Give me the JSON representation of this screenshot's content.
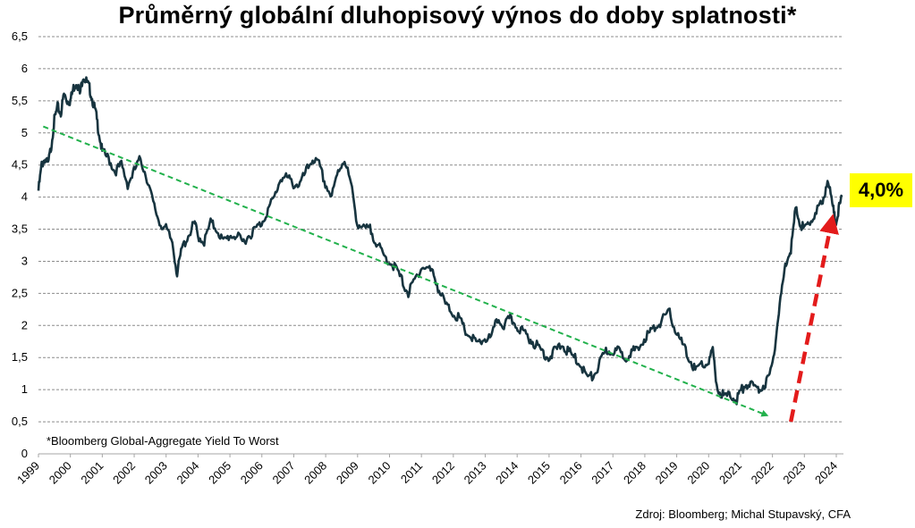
{
  "chart_data": {
    "type": "line",
    "title": "Průměrný globální dluhopisový výnos do doby splatnosti*",
    "footnote": "*Bloomberg Global-Aggregate Yield To Worst",
    "source": "Zdroj: Bloomberg; Michal Stupavský, CFA",
    "callout": "4,0%",
    "ylim": [
      0,
      6.5
    ],
    "yticks": [
      "0",
      "0,5",
      "1",
      "1,5",
      "2",
      "2,5",
      "3",
      "3,5",
      "4",
      "4,5",
      "5",
      "5,5",
      "6",
      "6,5"
    ],
    "xticks": [
      "1999",
      "2000",
      "2001",
      "2002",
      "2003",
      "2004",
      "2005",
      "2006",
      "2007",
      "2008",
      "2009",
      "2010",
      "2011",
      "2012",
      "2013",
      "2014",
      "2015",
      "2016",
      "2017",
      "2018",
      "2019",
      "2020",
      "2021",
      "2022",
      "2023",
      "2024"
    ],
    "xlim": [
      1999.0,
      2024.25
    ],
    "grid": "horizontal dashed",
    "series": [
      {
        "color": "#17343f",
        "points": [
          [
            1999.0,
            4.1
          ],
          [
            1999.1,
            4.5
          ],
          [
            1999.2,
            4.6
          ],
          [
            1999.3,
            4.5
          ],
          [
            1999.4,
            4.8
          ],
          [
            1999.5,
            5.2
          ],
          [
            1999.6,
            5.4
          ],
          [
            1999.7,
            5.3
          ],
          [
            1999.8,
            5.6
          ],
          [
            1999.9,
            5.5
          ],
          [
            2000.0,
            5.5
          ],
          [
            2000.1,
            5.7
          ],
          [
            2000.2,
            5.8
          ],
          [
            2000.3,
            5.6
          ],
          [
            2000.4,
            5.9
          ],
          [
            2000.5,
            5.8
          ],
          [
            2000.6,
            5.7
          ],
          [
            2000.7,
            5.5
          ],
          [
            2000.8,
            5.3
          ],
          [
            2000.9,
            5.0
          ],
          [
            2001.0,
            4.7
          ],
          [
            2001.2,
            4.6
          ],
          [
            2001.4,
            4.4
          ],
          [
            2001.6,
            4.5
          ],
          [
            2001.8,
            4.2
          ],
          [
            2002.0,
            4.4
          ],
          [
            2002.2,
            4.6
          ],
          [
            2002.4,
            4.3
          ],
          [
            2002.6,
            3.9
          ],
          [
            2002.8,
            3.6
          ],
          [
            2003.0,
            3.5
          ],
          [
            2003.2,
            3.3
          ],
          [
            2003.35,
            2.8
          ],
          [
            2003.5,
            3.2
          ],
          [
            2003.7,
            3.4
          ],
          [
            2003.9,
            3.6
          ],
          [
            2004.0,
            3.4
          ],
          [
            2004.2,
            3.3
          ],
          [
            2004.4,
            3.6
          ],
          [
            2004.6,
            3.5
          ],
          [
            2004.8,
            3.3
          ],
          [
            2005.0,
            3.4
          ],
          [
            2005.2,
            3.4
          ],
          [
            2005.4,
            3.3
          ],
          [
            2005.6,
            3.4
          ],
          [
            2005.8,
            3.5
          ],
          [
            2006.0,
            3.6
          ],
          [
            2006.2,
            3.8
          ],
          [
            2006.4,
            4.0
          ],
          [
            2006.6,
            4.3
          ],
          [
            2006.8,
            4.3
          ],
          [
            2007.0,
            4.2
          ],
          [
            2007.2,
            4.2
          ],
          [
            2007.4,
            4.4
          ],
          [
            2007.6,
            4.6
          ],
          [
            2007.8,
            4.5
          ],
          [
            2008.0,
            4.2
          ],
          [
            2008.2,
            4.0
          ],
          [
            2008.4,
            4.4
          ],
          [
            2008.6,
            4.6
          ],
          [
            2008.8,
            4.2
          ],
          [
            2009.0,
            3.6
          ],
          [
            2009.2,
            3.5
          ],
          [
            2009.4,
            3.5
          ],
          [
            2009.6,
            3.3
          ],
          [
            2009.8,
            3.1
          ],
          [
            2010.0,
            3.0
          ],
          [
            2010.2,
            2.9
          ],
          [
            2010.4,
            2.7
          ],
          [
            2010.6,
            2.5
          ],
          [
            2010.8,
            2.7
          ],
          [
            2011.0,
            2.9
          ],
          [
            2011.2,
            2.9
          ],
          [
            2011.4,
            2.8
          ],
          [
            2011.6,
            2.5
          ],
          [
            2011.8,
            2.3
          ],
          [
            2012.0,
            2.2
          ],
          [
            2012.2,
            2.1
          ],
          [
            2012.4,
            1.9
          ],
          [
            2012.6,
            1.8
          ],
          [
            2012.8,
            1.7
          ],
          [
            2013.0,
            1.8
          ],
          [
            2013.2,
            1.8
          ],
          [
            2013.4,
            2.1
          ],
          [
            2013.6,
            2.0
          ],
          [
            2013.8,
            2.1
          ],
          [
            2014.0,
            2.0
          ],
          [
            2014.2,
            1.9
          ],
          [
            2014.4,
            1.8
          ],
          [
            2014.6,
            1.7
          ],
          [
            2014.8,
            1.6
          ],
          [
            2015.0,
            1.5
          ],
          [
            2015.2,
            1.6
          ],
          [
            2015.4,
            1.7
          ],
          [
            2015.6,
            1.6
          ],
          [
            2015.8,
            1.5
          ],
          [
            2016.0,
            1.4
          ],
          [
            2016.2,
            1.2
          ],
          [
            2016.4,
            1.2
          ],
          [
            2016.6,
            1.4
          ],
          [
            2016.8,
            1.6
          ],
          [
            2017.0,
            1.6
          ],
          [
            2017.2,
            1.6
          ],
          [
            2017.4,
            1.5
          ],
          [
            2017.6,
            1.6
          ],
          [
            2017.8,
            1.6
          ],
          [
            2018.0,
            1.8
          ],
          [
            2018.2,
            1.9
          ],
          [
            2018.4,
            2.0
          ],
          [
            2018.6,
            2.1
          ],
          [
            2018.8,
            2.2
          ],
          [
            2019.0,
            1.9
          ],
          [
            2019.2,
            1.7
          ],
          [
            2019.4,
            1.5
          ],
          [
            2019.6,
            1.3
          ],
          [
            2019.8,
            1.4
          ],
          [
            2020.0,
            1.4
          ],
          [
            2020.15,
            1.6
          ],
          [
            2020.3,
            1.0
          ],
          [
            2020.5,
            0.9
          ],
          [
            2020.7,
            0.9
          ],
          [
            2020.9,
            0.85
          ],
          [
            2021.0,
            0.95
          ],
          [
            2021.2,
            1.1
          ],
          [
            2021.4,
            1.05
          ],
          [
            2021.6,
            1.0
          ],
          [
            2021.8,
            1.1
          ],
          [
            2022.0,
            1.3
          ],
          [
            2022.15,
            1.9
          ],
          [
            2022.3,
            2.5
          ],
          [
            2022.45,
            3.0
          ],
          [
            2022.6,
            3.2
          ],
          [
            2022.75,
            3.8
          ],
          [
            2022.9,
            3.6
          ],
          [
            2023.0,
            3.5
          ],
          [
            2023.2,
            3.6
          ],
          [
            2023.4,
            3.8
          ],
          [
            2023.6,
            3.9
          ],
          [
            2023.75,
            4.3
          ],
          [
            2023.9,
            3.9
          ],
          [
            2024.0,
            3.6
          ],
          [
            2024.1,
            3.8
          ],
          [
            2024.2,
            4.0
          ]
        ]
      }
    ],
    "trend_line": {
      "color": "#22b14c",
      "points": [
        [
          1999.15,
          5.1
        ],
        [
          2021.85,
          0.6
        ]
      ]
    },
    "arrow": {
      "color": "#e31b1b",
      "points": [
        [
          2022.6,
          0.5
        ],
        [
          2023.85,
          3.55
        ]
      ]
    }
  }
}
